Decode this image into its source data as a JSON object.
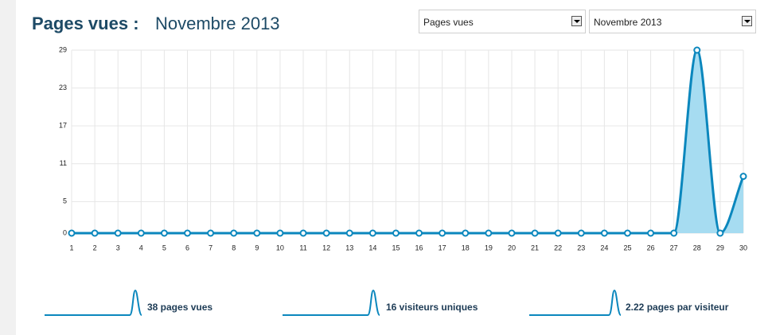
{
  "header": {
    "title": "Pages vues :",
    "subtitle": "Novembre 2013"
  },
  "controls": {
    "metric": "Pages vues",
    "month": "Novembre 2013"
  },
  "chart_data": {
    "type": "line",
    "x": [
      1,
      2,
      3,
      4,
      5,
      6,
      7,
      8,
      9,
      10,
      11,
      12,
      13,
      14,
      15,
      16,
      17,
      18,
      19,
      20,
      21,
      22,
      23,
      24,
      25,
      26,
      27,
      28,
      29,
      30
    ],
    "series": [
      {
        "name": "Pages vues",
        "color": "#0b87bd",
        "fill": "#a6dcf1",
        "values": [
          0,
          0,
          0,
          0,
          0,
          0,
          0,
          0,
          0,
          0,
          0,
          0,
          0,
          0,
          0,
          0,
          0,
          0,
          0,
          0,
          0,
          0,
          0,
          0,
          0,
          0,
          0,
          29,
          0,
          9
        ]
      }
    ],
    "xlim": [
      1,
      30
    ],
    "xticks": [
      1,
      2,
      3,
      4,
      5,
      6,
      7,
      8,
      9,
      10,
      11,
      12,
      13,
      14,
      15,
      16,
      17,
      18,
      19,
      20,
      21,
      22,
      23,
      24,
      25,
      26,
      27,
      28,
      29,
      30
    ],
    "ylim": [
      0,
      29
    ],
    "yticks": [
      0,
      5,
      11,
      17,
      23,
      29
    ],
    "grid": true
  },
  "stats": [
    "38 pages vues",
    "16 visiteurs uniques",
    "2.22 pages par visiteur"
  ]
}
